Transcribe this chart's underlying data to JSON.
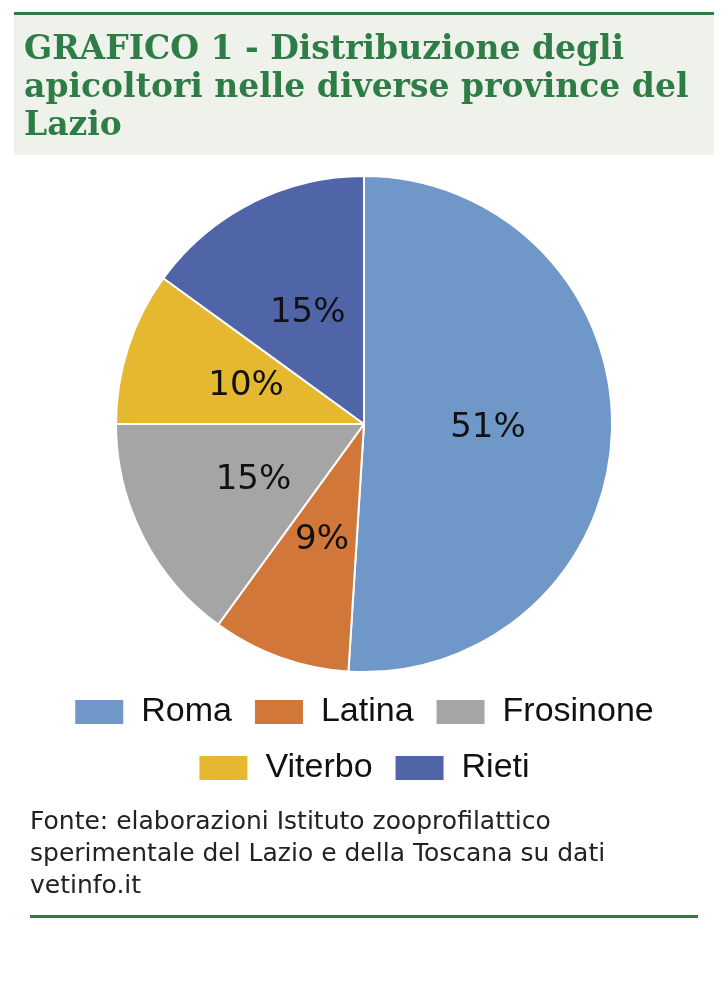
{
  "chart_data": {
    "type": "pie",
    "title": "GRAFICO 1 -  Distribuzione degli apicoltori nelle diverse province del Lazio",
    "categories": [
      "Roma",
      "Latina",
      "Frosinone",
      "Viterbo",
      "Rieti"
    ],
    "values": [
      51,
      9,
      15,
      10,
      15
    ],
    "colors": [
      "#6f97c8",
      "#d2773a",
      "#a5a5a5",
      "#e6b830",
      "#4f65a8"
    ],
    "value_labels": [
      "51%",
      "9%",
      "15%",
      "10%",
      "15%"
    ],
    "legend": "bottom",
    "annotations": [
      "Fonte: elaborazioni Istituto zooprofilattico sperimentale del Lazio e della Toscana su dati vetinfo.it"
    ]
  }
}
